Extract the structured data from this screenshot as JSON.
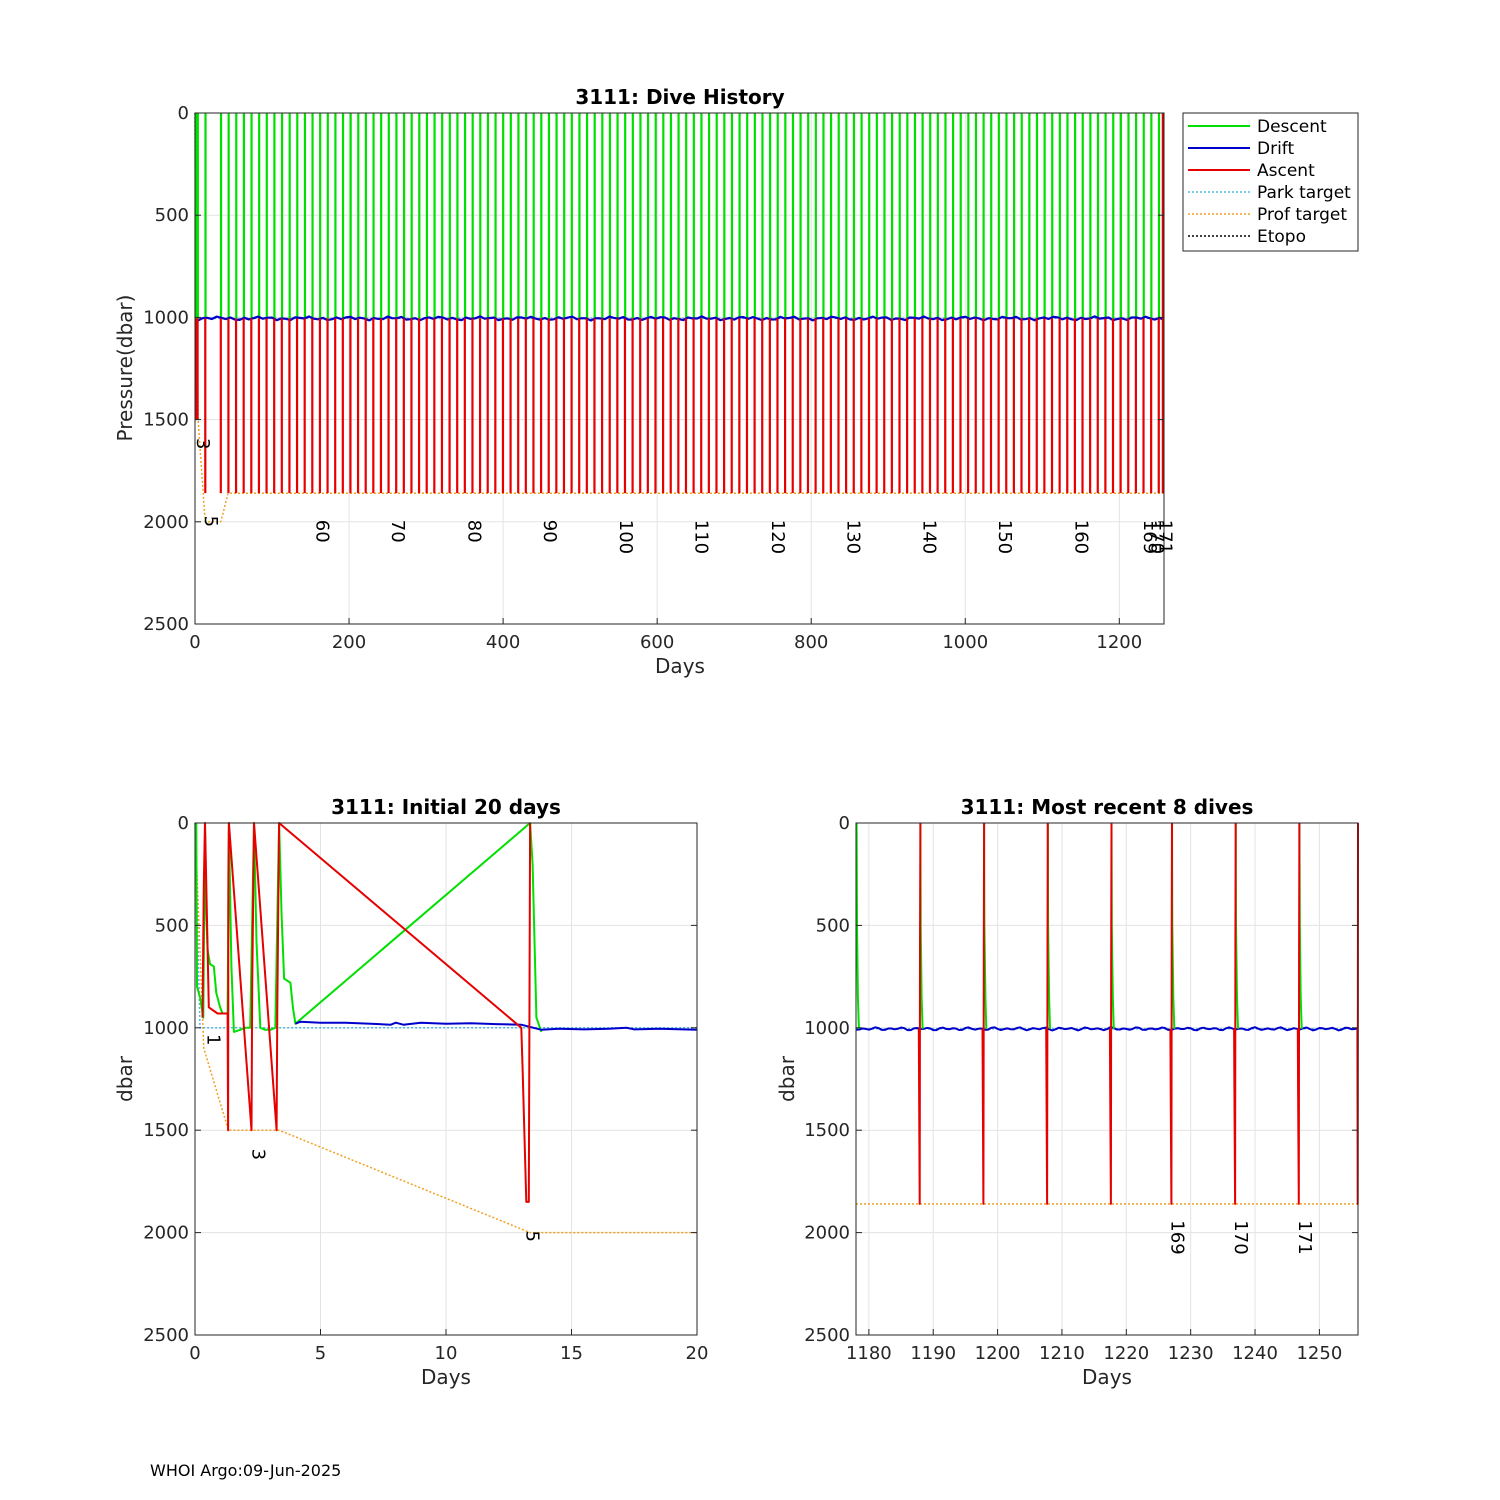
{
  "footer": "WHOI Argo:09-Jun-2025",
  "legend": [
    {
      "label": "Descent",
      "color": "#00e000",
      "dash": "solid"
    },
    {
      "label": "Drift",
      "color": "#0000cc",
      "dash": "solid"
    },
    {
      "label": "Ascent",
      "color": "#e60000",
      "dash": "solid"
    },
    {
      "label": "Park target",
      "color": "#4db8e6",
      "dash": "dotted"
    },
    {
      "label": "Prof target",
      "color": "#f0a020",
      "dash": "dotted"
    },
    {
      "label": "Etopo",
      "color": "#000000",
      "dash": "dotted"
    }
  ],
  "chart_data": [
    {
      "id": "history",
      "type": "line",
      "title": "3111: Dive History",
      "xlabel": "Days",
      "ylabel": "Pressure(dbar)",
      "xlim": [
        0,
        1258
      ],
      "ylim": [
        0,
        2500
      ],
      "y_reversed": true,
      "grid": true,
      "legend_position": "outside-top-right",
      "xticks": [
        0,
        200,
        400,
        600,
        800,
        1000,
        1200
      ],
      "yticks": [
        0,
        500,
        1000,
        1500,
        2000,
        2500
      ],
      "cycle_period_days": 9.9,
      "first_regular_cycle": {
        "cycle": 6,
        "day": 33.5
      },
      "drift_pressure_dbar": 1005,
      "profile_target_dbar": 1860,
      "cycle_labels": [
        {
          "text": "3",
          "x": 2.5,
          "y": 1590
        },
        {
          "text": "5",
          "x": 13,
          "y": 1970
        },
        {
          "text": "60",
          "x": 158,
          "y": 1990
        },
        {
          "text": "70",
          "x": 256,
          "y": 1990
        },
        {
          "text": "80",
          "x": 355,
          "y": 1990
        },
        {
          "text": "90",
          "x": 453,
          "y": 1990
        },
        {
          "text": "100",
          "x": 552,
          "y": 1990
        },
        {
          "text": "110",
          "x": 650,
          "y": 1990
        },
        {
          "text": "120",
          "x": 749,
          "y": 1990
        },
        {
          "text": "130",
          "x": 847,
          "y": 1990
        },
        {
          "text": "140",
          "x": 946,
          "y": 1990
        },
        {
          "text": "150",
          "x": 1044,
          "y": 1990
        },
        {
          "text": "160",
          "x": 1143,
          "y": 1990
        },
        {
          "text": "169",
          "x": 1232,
          "y": 1990
        },
        {
          "text": "170",
          "x": 1242,
          "y": 1990
        },
        {
          "text": "171",
          "x": 1252,
          "y": 1990
        }
      ]
    },
    {
      "id": "initial",
      "type": "line",
      "title": "3111: Initial 20 days",
      "xlabel": "Days",
      "ylabel": "dbar",
      "xlim": [
        0,
        20
      ],
      "ylim": [
        0,
        2500
      ],
      "y_reversed": true,
      "grid": true,
      "xticks": [
        0,
        5,
        10,
        15,
        20
      ],
      "yticks": [
        0,
        500,
        1000,
        1500,
        2000,
        2500
      ],
      "series": [
        {
          "name": "Descent",
          "color": "#00e000",
          "points": [
            [
              0.05,
              0
            ],
            [
              0.08,
              800
            ],
            [
              0.2,
              850
            ],
            [
              0.33,
              950
            ],
            [
              0.4,
              0
            ],
            [
              0.45,
              450
            ],
            [
              0.5,
              620
            ],
            [
              0.6,
              690
            ],
            [
              0.75,
              700
            ],
            [
              0.85,
              830
            ],
            [
              1.0,
              900
            ],
            [
              1.1,
              930
            ],
            [
              1.3,
              930
            ],
            [
              1.35,
              0
            ],
            [
              1.45,
              700
            ],
            [
              1.55,
              1020
            ],
            [
              1.8,
              1010
            ],
            [
              2.0,
              1000
            ],
            [
              2.2,
              1000
            ],
            [
              2.35,
              0
            ],
            [
              2.45,
              580
            ],
            [
              2.6,
              1000
            ],
            [
              2.8,
              1010
            ],
            [
              3.0,
              1010
            ],
            [
              3.2,
              1000
            ],
            [
              3.35,
              0
            ],
            [
              3.45,
              450
            ],
            [
              3.55,
              760
            ],
            [
              3.8,
              780
            ],
            [
              3.9,
              900
            ],
            [
              4.0,
              980
            ],
            [
              13.35,
              0
            ],
            [
              13.45,
              200
            ],
            [
              13.6,
              950
            ],
            [
              13.8,
              1020
            ]
          ]
        },
        {
          "name": "Drift",
          "color": "#0000cc",
          "points": [
            [
              4.0,
              980
            ],
            [
              4.2,
              970
            ],
            [
              5,
              975
            ],
            [
              6,
              975
            ],
            [
              7,
              980
            ],
            [
              7.8,
              985
            ],
            [
              8,
              975
            ],
            [
              8.3,
              985
            ],
            [
              9,
              975
            ],
            [
              10,
              980
            ],
            [
              11,
              978
            ],
            [
              12,
              982
            ],
            [
              13,
              985
            ],
            [
              13.8,
              1010
            ],
            [
              14.5,
              1005
            ],
            [
              15.5,
              1008
            ],
            [
              16.5,
              1005
            ],
            [
              17.2,
              1000
            ],
            [
              17.5,
              1008
            ],
            [
              18.5,
              1005
            ],
            [
              20,
              1010
            ]
          ]
        },
        {
          "name": "Ascent",
          "color": "#e60000",
          "points": [
            [
              0.3,
              950
            ],
            [
              0.35,
              300
            ],
            [
              0.4,
              0
            ],
            [
              0.55,
              900
            ],
            [
              0.9,
              930
            ],
            [
              1.3,
              930
            ],
            [
              1.32,
              1500
            ],
            [
              1.33,
              250
            ],
            [
              1.35,
              0
            ],
            [
              2.25,
              1500
            ],
            [
              2.28,
              800
            ],
            [
              2.35,
              0
            ],
            [
              3.25,
              1500
            ],
            [
              3.28,
              900
            ],
            [
              3.35,
              0
            ],
            [
              13.0,
              1000
            ],
            [
              13.05,
              1200
            ],
            [
              13.2,
              1850
            ],
            [
              13.3,
              1850
            ],
            [
              13.35,
              0
            ]
          ]
        },
        {
          "name": "Park target",
          "color": "#4db8e6",
          "points": [
            [
              0,
              0
            ],
            [
              0.2,
              1000
            ],
            [
              20,
              1000
            ]
          ]
        },
        {
          "name": "Prof target",
          "color": "#f0a020",
          "points": [
            [
              0,
              0
            ],
            [
              0.35,
              1100
            ],
            [
              1.33,
              1500
            ],
            [
              3.35,
              1500
            ],
            [
              13.35,
              2000
            ],
            [
              20,
              2000
            ]
          ]
        }
      ],
      "cycle_labels": [
        {
          "text": "1",
          "x": 0.5,
          "y": 1030
        },
        {
          "text": "3",
          "x": 2.3,
          "y": 1590
        },
        {
          "text": "5",
          "x": 13.2,
          "y": 1990
        }
      ]
    },
    {
      "id": "recent",
      "type": "line",
      "title": "3111: Most recent 8 dives",
      "xlabel": "Days",
      "ylabel": "dbar",
      "xlim": [
        1178,
        1256
      ],
      "ylim": [
        0,
        2500
      ],
      "y_reversed": true,
      "grid": true,
      "xticks": [
        1180,
        1190,
        1200,
        1210,
        1220,
        1230,
        1240,
        1250
      ],
      "yticks": [
        0,
        500,
        1000,
        1500,
        2000,
        2500
      ],
      "surfacings": [
        1178,
        1187.9,
        1197.8,
        1207.7,
        1217.6,
        1227.0,
        1236.9,
        1246.8
      ],
      "final_ascent": 1256,
      "drift_pressure_dbar": 1005,
      "profile_target_dbar": 1860,
      "cycle_labels": [
        {
          "text": "169",
          "x": 1227.0,
          "y": 1940
        },
        {
          "text": "170",
          "x": 1236.9,
          "y": 1940
        },
        {
          "text": "171",
          "x": 1246.8,
          "y": 1940
        }
      ]
    }
  ]
}
